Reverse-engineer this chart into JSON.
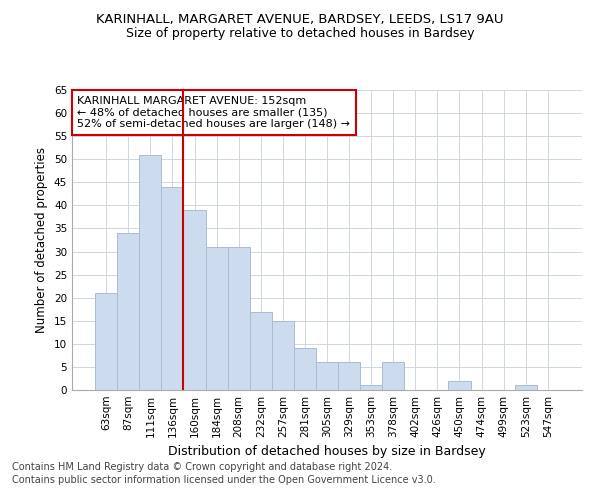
{
  "title1": "KARINHALL, MARGARET AVENUE, BARDSEY, LEEDS, LS17 9AU",
  "title2": "Size of property relative to detached houses in Bardsey",
  "xlabel": "Distribution of detached houses by size in Bardsey",
  "ylabel": "Number of detached properties",
  "categories": [
    "63sqm",
    "87sqm",
    "111sqm",
    "136sqm",
    "160sqm",
    "184sqm",
    "208sqm",
    "232sqm",
    "257sqm",
    "281sqm",
    "305sqm",
    "329sqm",
    "353sqm",
    "378sqm",
    "402sqm",
    "426sqm",
    "450sqm",
    "474sqm",
    "499sqm",
    "523sqm",
    "547sqm"
  ],
  "values": [
    21,
    34,
    51,
    44,
    39,
    31,
    31,
    17,
    15,
    9,
    6,
    6,
    1,
    6,
    0,
    0,
    2,
    0,
    0,
    1,
    0
  ],
  "bar_color": "#ccdcee",
  "bar_edge_color": "#aabcce",
  "vline_x_index": 4,
  "vline_color": "#cc0000",
  "annotation_text": "KARINHALL MARGARET AVENUE: 152sqm\n← 48% of detached houses are smaller (135)\n52% of semi-detached houses are larger (148) →",
  "annotation_box_color": "#ffffff",
  "annotation_box_edge": "#cc0000",
  "ylim": [
    0,
    65
  ],
  "yticks": [
    0,
    5,
    10,
    15,
    20,
    25,
    30,
    35,
    40,
    45,
    50,
    55,
    60,
    65
  ],
  "footer1": "Contains HM Land Registry data © Crown copyright and database right 2024.",
  "footer2": "Contains public sector information licensed under the Open Government Licence v3.0.",
  "bg_color": "#ffffff",
  "axes_bg_color": "#ffffff",
  "grid_color": "#d0d8e0",
  "title1_fontsize": 9.5,
  "title2_fontsize": 9,
  "xlabel_fontsize": 9,
  "ylabel_fontsize": 8.5,
  "tick_fontsize": 7.5,
  "annotation_fontsize": 8,
  "footer_fontsize": 7
}
